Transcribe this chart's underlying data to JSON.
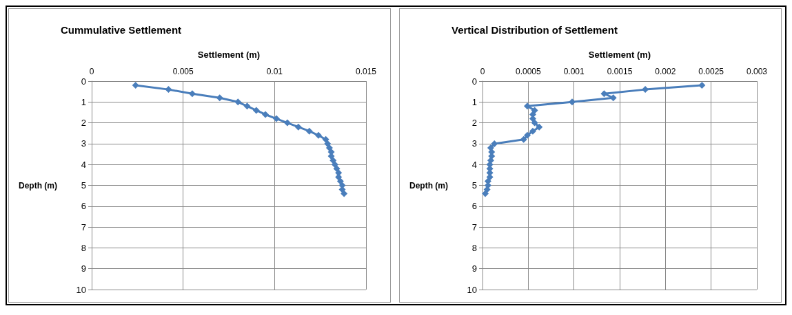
{
  "chart_data": [
    {
      "type": "line",
      "title": "Cummulative Settlement",
      "xlabel": "Settlement (m)",
      "ylabel": "Depth (m)",
      "xlim": [
        0,
        0.015
      ],
      "xticks": [
        0,
        0.005,
        0.01,
        0.015
      ],
      "ylim": [
        10,
        0
      ],
      "yticks": [
        0,
        1,
        2,
        3,
        4,
        5,
        6,
        7,
        8,
        9,
        10
      ],
      "grid": true,
      "marker": "diamond",
      "line_style": "solid",
      "series": [
        {
          "color": "#4a7ebb",
          "x": [
            0.0024,
            0.0042,
            0.0055,
            0.007,
            0.008,
            0.0085,
            0.009,
            0.0095,
            0.0101,
            0.0107,
            0.0113,
            0.0119,
            0.0124,
            0.0128,
            0.0129,
            0.013,
            0.0131,
            0.0131,
            0.0132,
            0.0133,
            0.0134,
            0.0135,
            0.0135,
            0.0136,
            0.0137,
            0.0137,
            0.0138
          ],
          "values": [
            0.2,
            0.4,
            0.6,
            0.8,
            1,
            1.2,
            1.4,
            1.6,
            1.8,
            2,
            2.2,
            2.4,
            2.6,
            2.8,
            3,
            3.2,
            3.4,
            3.6,
            3.8,
            4,
            4.2,
            4.4,
            4.6,
            4.8,
            5,
            5.2,
            5.4
          ]
        }
      ]
    },
    {
      "type": "line",
      "title": "Vertical Distribution of Settlement",
      "xlabel": "Settlement (m)",
      "ylabel": "Depth (m)",
      "xlim": [
        0,
        0.003
      ],
      "xticks": [
        0,
        0.0005,
        0.001,
        0.0015,
        0.002,
        0.0025,
        0.003
      ],
      "ylim": [
        10,
        0
      ],
      "yticks": [
        0,
        1,
        2,
        3,
        4,
        5,
        6,
        7,
        8,
        9,
        10
      ],
      "grid": true,
      "marker": "diamond",
      "line_style": "solid",
      "series": [
        {
          "color": "#4a7ebb",
          "x": [
            0.0024,
            0.00178,
            0.00133,
            0.00143,
            0.00098,
            0.00049,
            0.00057,
            0.00055,
            0.00055,
            0.00057,
            0.00062,
            0.00055,
            0.00049,
            0.00045,
            0.00013,
            9e-05,
            0.0001,
            0.0001,
            9e-05,
            8e-05,
            8e-05,
            8e-05,
            8e-05,
            6e-05,
            6e-05,
            5e-05,
            3e-05
          ],
          "values": [
            0.2,
            0.4,
            0.6,
            0.8,
            1,
            1.2,
            1.4,
            1.6,
            1.8,
            2,
            2.2,
            2.4,
            2.6,
            2.8,
            3,
            3.2,
            3.4,
            3.6,
            3.8,
            4,
            4.2,
            4.4,
            4.6,
            4.8,
            5,
            5.2,
            5.4
          ]
        }
      ]
    }
  ]
}
